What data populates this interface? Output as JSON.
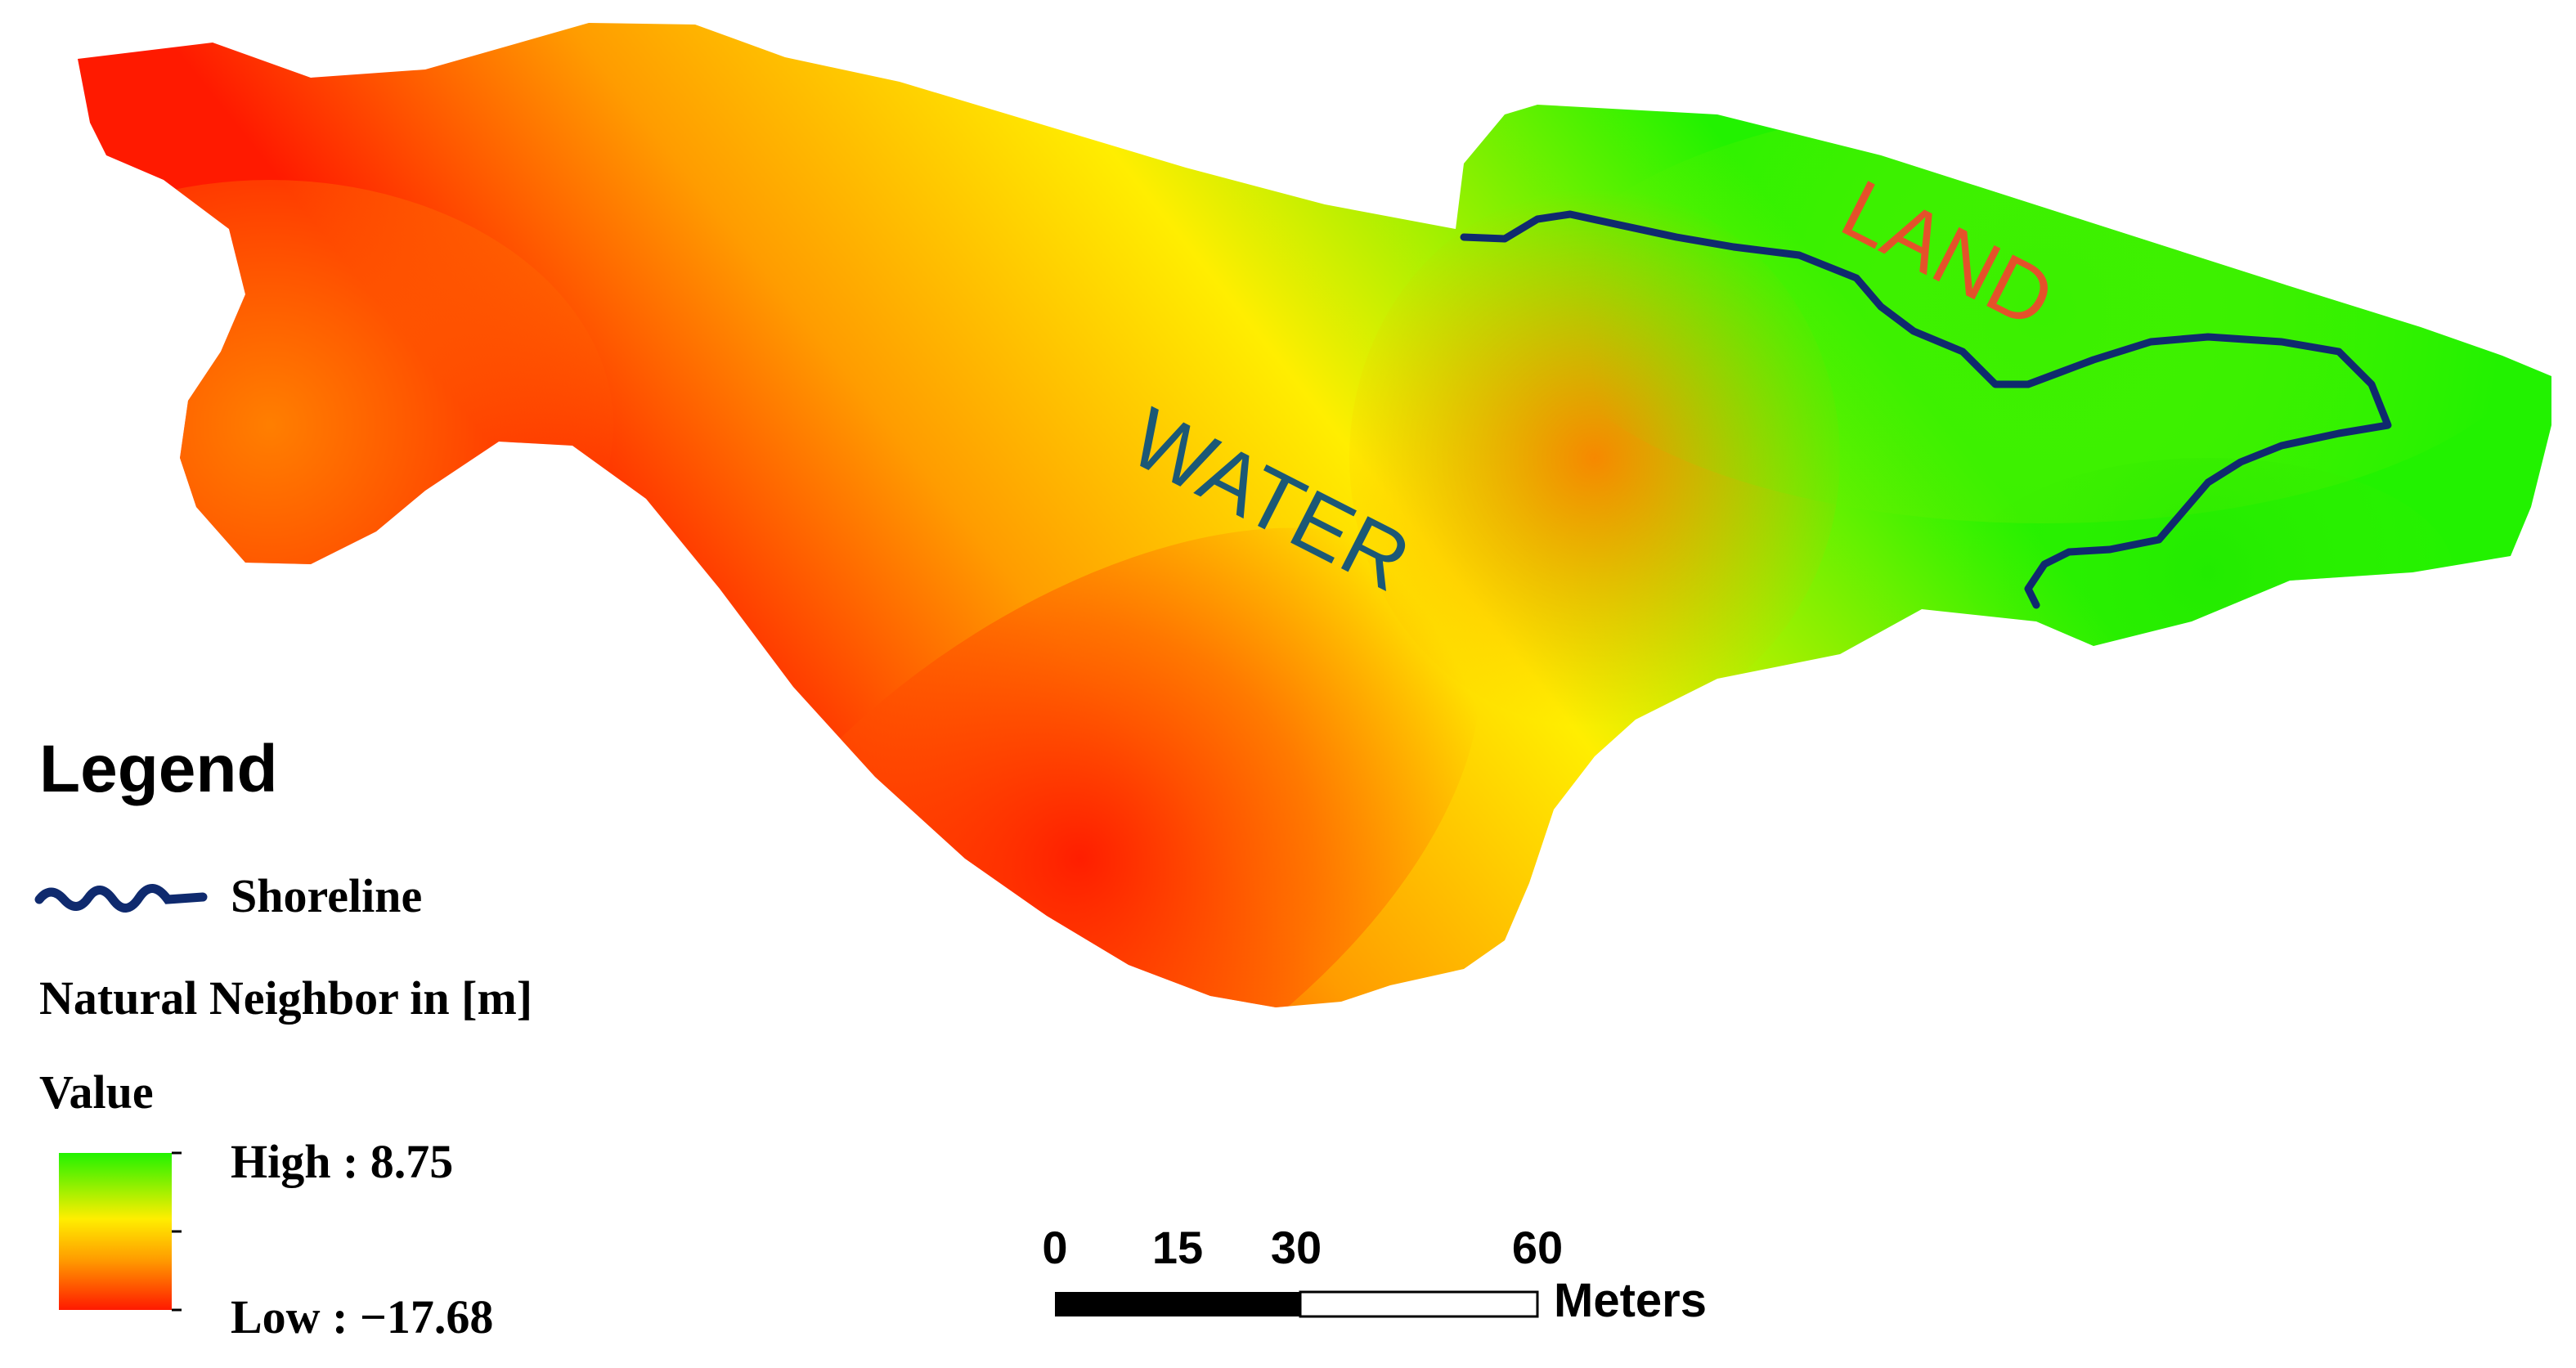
{
  "map": {
    "labels": {
      "water": "WATER",
      "land": "LAND"
    },
    "colors": {
      "water_label": "#1b5876",
      "land_label": "#e4522a",
      "shoreline": "#0f2a6e",
      "ramp_low": "#ff1a00",
      "ramp_mid_low": "#ff9c00",
      "ramp_mid": "#ffee00",
      "ramp_high": "#22f200"
    }
  },
  "legend": {
    "title": "Legend",
    "shoreline_label": "Shoreline",
    "field_label": "Natural Neighbor in [m]",
    "value_label": "Value",
    "high_label": "High : 8.75",
    "low_label": "Low : −17.68",
    "high_value": 8.75,
    "low_value": -17.68
  },
  "scalebar": {
    "ticks": [
      "0",
      "15",
      "30",
      "60"
    ],
    "tick_values": [
      0,
      15,
      30,
      60
    ],
    "unit": "Meters"
  }
}
